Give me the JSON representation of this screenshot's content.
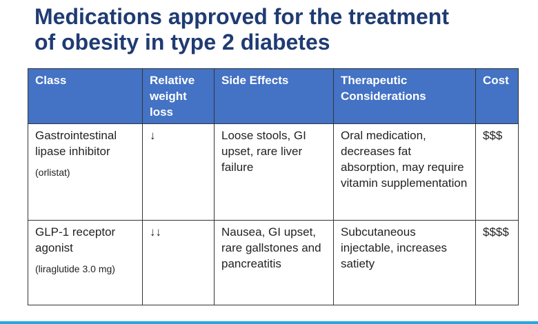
{
  "title": {
    "line1": "Medications approved for the treatment",
    "line2": "of obesity in type 2 diabetes"
  },
  "table": {
    "headers": [
      "Class",
      "Relative weight loss",
      "Side Effects",
      "Therapeutic Considerations",
      "Cost"
    ],
    "rows": [
      {
        "class_name": "Gastrointestinal lipase inhibitor",
        "example": "(orlistat)",
        "weight_loss": "↓",
        "side_effects": "Loose stools, GI upset, rare liver failure",
        "considerations": "Oral medication, decreases fat absorption, may require vitamin supplementation",
        "cost": "$$$"
      },
      {
        "class_name": "GLP-1 receptor agonist",
        "example": "(liraglutide 3.0 mg)",
        "weight_loss": "↓↓",
        "side_effects": "Nausea, GI upset, rare gallstones and pancreatitis",
        "considerations": "Subcutaneous injectable, increases satiety",
        "cost": "$$$$"
      }
    ]
  },
  "colors": {
    "title": "#1f3b73",
    "header_bg": "#4472c4",
    "header_text": "#ffffff",
    "accent_rule": "#29a8e0"
  }
}
